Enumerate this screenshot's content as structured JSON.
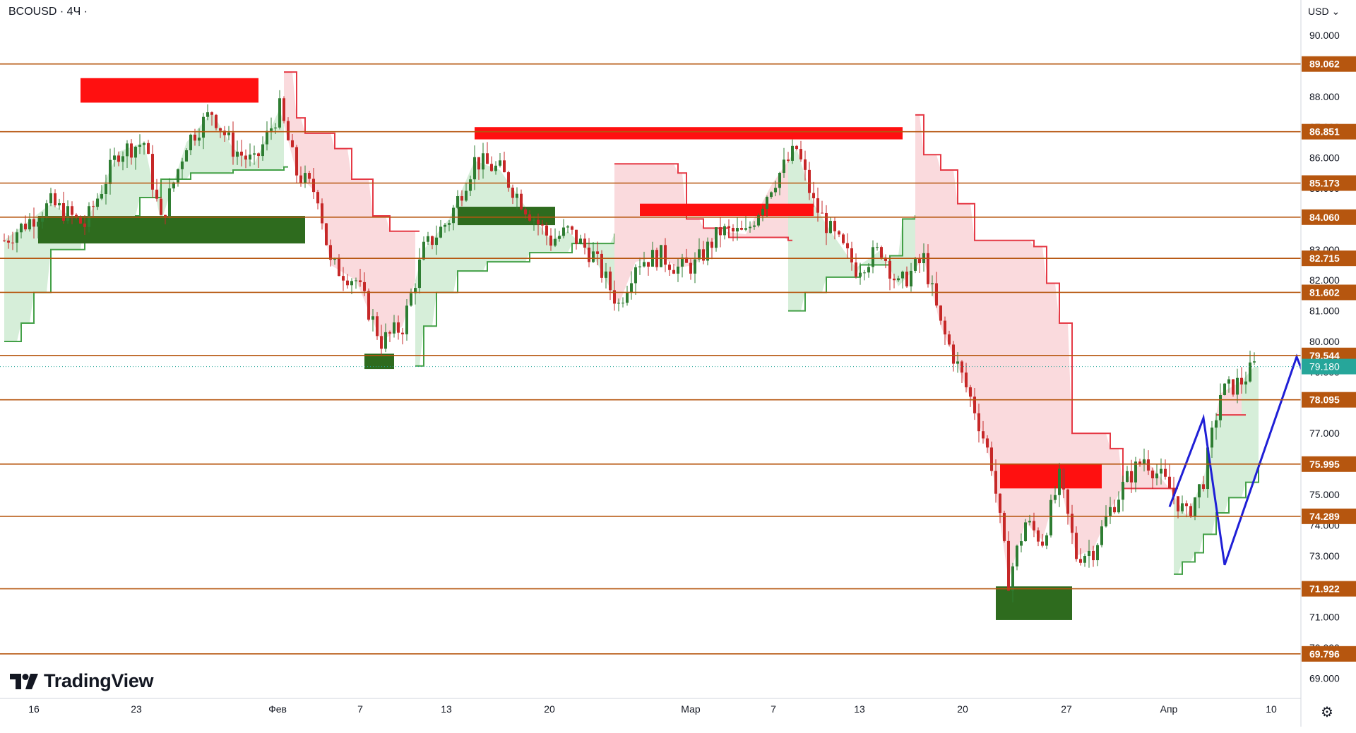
{
  "header": {
    "symbol": "BCOUSD · 4Ч ·"
  },
  "price_axis": {
    "currency": "USD"
  },
  "logo": {
    "name": "TradingView"
  },
  "settings_icon": "gear-icon",
  "colors": {
    "level_line": "#b6560f",
    "level_tag_bg": "#b6560f",
    "current_tag_bg": "#26a69a",
    "bull_candle": "#2e7d32",
    "bear_candle": "#c62828",
    "supply_zone": "#ff1010",
    "demand_zone": "#2e6b1e",
    "bull_stop": "#43a047",
    "bear_stop": "#e53945",
    "bull_fill": "#d6eed9",
    "bear_fill": "#fadadd",
    "projection": "#1f1fd6",
    "target_tag": "#000000",
    "support_tag": "#43a047",
    "stop_tag": "#e53935"
  },
  "chart_data": {
    "type": "candlestick",
    "ylim": [
      68.4,
      91.1
    ],
    "y_ticks": [
      "69.000",
      "70.000",
      "71.000",
      "72.000",
      "73.000",
      "74.000",
      "75.000",
      "76.000",
      "77.000",
      "78.000",
      "79.000",
      "80.000",
      "81.000",
      "82.000",
      "83.000",
      "84.000",
      "85.000",
      "86.000",
      "87.000",
      "88.000",
      "89.000",
      "90.000"
    ],
    "x_ticks": [
      "16",
      "23",
      "Фев",
      "7",
      "13",
      "20",
      "Мар",
      "7",
      "13",
      "20",
      "27",
      "Апр",
      "10"
    ],
    "levels": [
      "89.062",
      "86.851",
      "85.173",
      "84.060",
      "82.715",
      "81.602",
      "79.544",
      "78.095",
      "75.995",
      "74.289",
      "71.922",
      "69.796"
    ],
    "current_price": "79.180",
    "close_path": [
      [
        1,
        83.3
      ],
      [
        12,
        84.5
      ],
      [
        20,
        83.8
      ],
      [
        28,
        86.2
      ],
      [
        34,
        86.5
      ],
      [
        38,
        83.9
      ],
      [
        44,
        86.5
      ],
      [
        50,
        87.5
      ],
      [
        55,
        86.3
      ],
      [
        60,
        85.8
      ],
      [
        66,
        87.6
      ],
      [
        70,
        85.5
      ],
      [
        75,
        84.8
      ],
      [
        78,
        82.5
      ],
      [
        84,
        82.0
      ],
      [
        90,
        80.0
      ],
      [
        95,
        80.5
      ],
      [
        100,
        83.0
      ],
      [
        106,
        84.0
      ],
      [
        112,
        85.9
      ],
      [
        118,
        85.6
      ],
      [
        124,
        84.4
      ],
      [
        130,
        83.3
      ],
      [
        134,
        83.6
      ],
      [
        140,
        82.8
      ],
      [
        146,
        81.2
      ],
      [
        150,
        82.6
      ],
      [
        156,
        82.8
      ],
      [
        160,
        82.4
      ],
      [
        164,
        82.5
      ],
      [
        170,
        83.6
      ],
      [
        176,
        83.5
      ],
      [
        182,
        85.1
      ],
      [
        188,
        86.3
      ],
      [
        192,
        84.5
      ],
      [
        196,
        83.6
      ],
      [
        202,
        82.4
      ],
      [
        208,
        83.0
      ],
      [
        212,
        81.8
      ],
      [
        218,
        82.7
      ],
      [
        222,
        80.5
      ],
      [
        226,
        79.2
      ],
      [
        230,
        77.8
      ],
      [
        234,
        76.0
      ],
      [
        238,
        72.2
      ],
      [
        242,
        74.1
      ],
      [
        246,
        73.5
      ],
      [
        250,
        75.5
      ],
      [
        254,
        73.0
      ],
      [
        258,
        73.2
      ],
      [
        262,
        74.5
      ],
      [
        266,
        75.5
      ],
      [
        270,
        76.2
      ],
      [
        276,
        75.2
      ],
      [
        280,
        74.3
      ],
      [
        284,
        75.5
      ],
      [
        288,
        78.3
      ],
      [
        293,
        78.7
      ],
      [
        296,
        79.18
      ]
    ],
    "supply_zones": [
      {
        "x0": 19,
        "x1": 61,
        "y0": 87.8,
        "y1": 88.6
      },
      {
        "x0": 112,
        "x1": 213,
        "y0": 86.6,
        "y1": 87.0
      },
      {
        "x0": 151,
        "x1": 192,
        "y0": 84.1,
        "y1": 84.5
      },
      {
        "x0": 236,
        "x1": 260,
        "y0": 75.2,
        "y1": 76.0
      }
    ],
    "demand_zones": [
      {
        "x0": 9,
        "x1": 72,
        "y0": 83.2,
        "y1": 84.1
      },
      {
        "x0": 86,
        "x1": 93,
        "y0": 79.1,
        "y1": 79.6
      },
      {
        "x0": 108,
        "x1": 131,
        "y0": 83.8,
        "y1": 84.4
      },
      {
        "x0": 235,
        "x1": 253,
        "y0": 70.9,
        "y1": 72.0
      }
    ],
    "bull_regimes": [
      {
        "x0": 1,
        "x1": 67,
        "stop": [
          [
            1,
            80.0
          ],
          [
            5,
            80.6
          ],
          [
            8,
            81.6
          ],
          [
            12,
            83.0
          ],
          [
            20,
            84.0
          ],
          [
            32,
            84.1
          ],
          [
            33,
            84.7
          ],
          [
            38,
            85.3
          ],
          [
            45,
            85.5
          ],
          [
            55,
            85.6
          ],
          [
            63,
            85.6
          ],
          [
            67,
            85.7
          ]
        ]
      },
      {
        "x0": 98,
        "x1": 145,
        "stop": [
          [
            98,
            79.2
          ],
          [
            100,
            80.5
          ],
          [
            103,
            81.6
          ],
          [
            108,
            82.3
          ],
          [
            115,
            82.6
          ],
          [
            125,
            82.9
          ],
          [
            135,
            83.2
          ],
          [
            145,
            83.5
          ]
        ]
      },
      {
        "x0": 186,
        "x1": 216,
        "stop": [
          [
            186,
            81.0
          ],
          [
            190,
            81.6
          ],
          [
            195,
            82.1
          ],
          [
            203,
            82.5
          ],
          [
            210,
            82.8
          ],
          [
            213,
            84.0
          ],
          [
            216,
            84.1
          ]
        ]
      },
      {
        "x0": 277,
        "x1": 297,
        "stop": [
          [
            277,
            72.4
          ],
          [
            279,
            72.8
          ],
          [
            282,
            73.1
          ],
          [
            284,
            73.7
          ],
          [
            287,
            74.4
          ],
          [
            290,
            74.9
          ],
          [
            294,
            75.4
          ],
          [
            297,
            76.0
          ]
        ]
      }
    ],
    "bear_regimes": [
      {
        "x0": 67,
        "x1": 98,
        "stop": [
          [
            67,
            88.8
          ],
          [
            70,
            87.3
          ],
          [
            72,
            86.8
          ],
          [
            79,
            86.3
          ],
          [
            83,
            85.3
          ],
          [
            88,
            84.1
          ],
          [
            92,
            83.6
          ],
          [
            98,
            83.6
          ]
        ]
      },
      {
        "x0": 145,
        "x1": 186,
        "stop": [
          [
            145,
            85.8
          ],
          [
            160,
            85.5
          ],
          [
            162,
            84.0
          ],
          [
            166,
            83.7
          ],
          [
            172,
            83.4
          ],
          [
            186,
            83.3
          ]
        ]
      },
      {
        "x0": 216,
        "x1": 277,
        "stop": [
          [
            216,
            87.4
          ],
          [
            218,
            86.1
          ],
          [
            222,
            85.6
          ],
          [
            226,
            84.5
          ],
          [
            230,
            83.3
          ],
          [
            244,
            83.1
          ],
          [
            247,
            81.9
          ],
          [
            250,
            80.6
          ],
          [
            253,
            77.0
          ],
          [
            262,
            76.5
          ],
          [
            265,
            75.2
          ],
          [
            277,
            75.2
          ]
        ]
      },
      {
        "x0": 287,
        "x1": 293,
        "stop": [
          [
            287,
            77.6
          ],
          [
            293,
            77.6
          ]
        ]
      }
    ],
    "projection": [
      [
        276,
        74.6
      ],
      [
        284,
        77.5
      ],
      [
        289,
        72.7
      ],
      [
        306,
        79.5
      ],
      [
        316,
        75.9
      ],
      [
        332,
        83.5
      ],
      [
        335,
        82.9
      ]
    ],
    "target_labels": [
      {
        "value": "84.060",
        "x": 333,
        "y": 84.06,
        "style": "target"
      },
      {
        "value": "81.602",
        "x": 333,
        "y": 81.602,
        "style": "target"
      },
      {
        "value": "75.995",
        "x": 333,
        "y": 75.995,
        "style": "support"
      },
      {
        "value": "71.922",
        "x": 333,
        "y": 71.922,
        "style": "stop"
      }
    ],
    "entry_arrow": {
      "x": 316,
      "y": 75.6
    },
    "stop_mark": {
      "x": 331,
      "y": 71.7
    }
  }
}
